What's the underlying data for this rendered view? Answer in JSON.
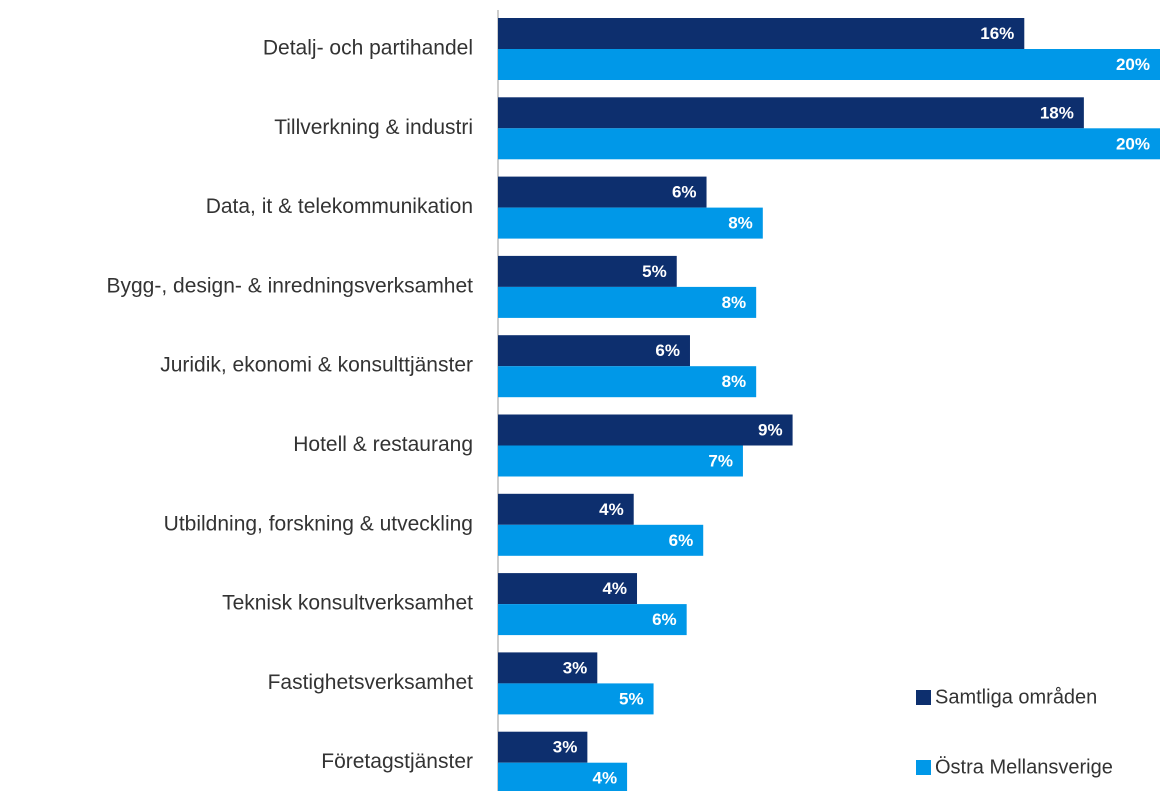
{
  "chart_data": {
    "type": "hbar",
    "categories": [
      "Detalj- och partihandel",
      "Tillverkning & industri",
      "Data, it & telekommunikation",
      "Bygg-, design- & inredningsverksamhet",
      "Juridik, ekonomi & konsulttjänster",
      "Hotell & restaurang",
      "Utbildning, forskning & utveckling",
      "Teknisk konsultverksamhet",
      "Fastighetsverksamhet",
      "Företagstjänster"
    ],
    "series": [
      {
        "name": "Samtliga områden",
        "color": "#0d2f6e",
        "values": [
          15.9,
          17.7,
          6.3,
          5.4,
          5.8,
          8.9,
          4.1,
          4.2,
          3.0,
          2.7
        ],
        "value_labels": [
          "16%",
          "18%",
          "6%",
          "5%",
          "6%",
          "9%",
          "4%",
          "4%",
          "3%",
          "3%"
        ]
      },
      {
        "name": "Östra Mellansverige",
        "color": "#0098e8",
        "values": [
          20.0,
          20.0,
          8.0,
          7.8,
          7.8,
          7.4,
          6.2,
          5.7,
          4.7,
          3.9
        ],
        "value_labels": [
          "20%",
          "20%",
          "8%",
          "8%",
          "8%",
          "7%",
          "6%",
          "6%",
          "5%",
          "4%"
        ]
      }
    ],
    "xlim": [
      0,
      20
    ]
  }
}
